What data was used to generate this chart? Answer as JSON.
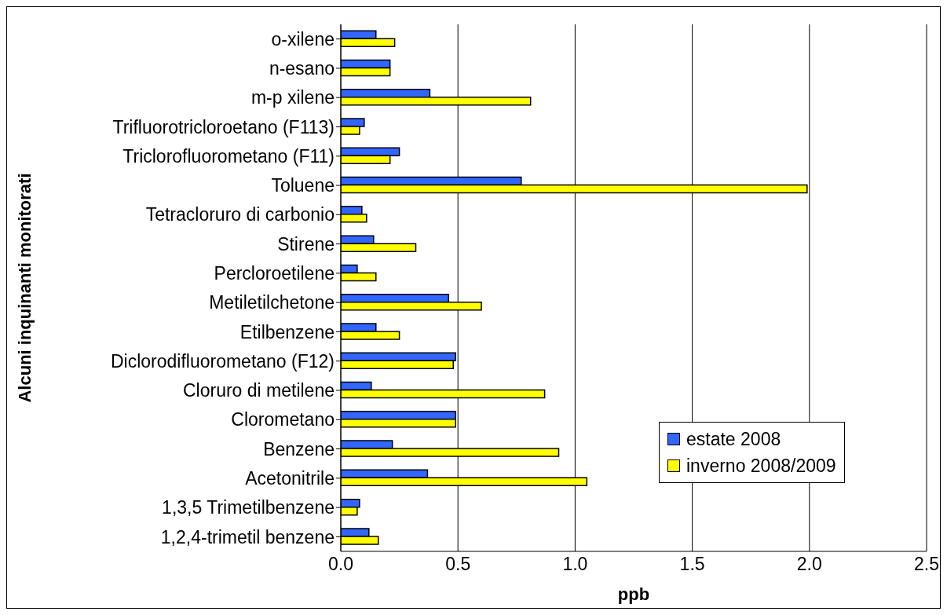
{
  "chart_data": {
    "type": "bar",
    "orientation": "horizontal",
    "xlabel": "ppb",
    "ylabel": "Alcuni inquinanti monitorati",
    "categories": [
      "o-xilene",
      "n-esano",
      "m-p xilene",
      "Trifluorotricloroetano (F113)",
      "Triclorofluorometano (F11)",
      "Toluene",
      "Tetracloruro di carbonio",
      "Stirene",
      "Percloroetilene",
      "Metiletilchetone",
      "Etilbenzene",
      "Diclorodifluorometano (F12)",
      "Cloruro di metilene",
      "Clorometano",
      "Benzene",
      "Acetonitrile",
      "1,3,5 Trimetilbenzene",
      "1,2,4-trimetil benzene"
    ],
    "series": [
      {
        "name": "estate 2008",
        "color": "#3366ff",
        "values": [
          0.15,
          0.21,
          0.38,
          0.1,
          0.25,
          0.77,
          0.09,
          0.14,
          0.07,
          0.46,
          0.15,
          0.49,
          0.13,
          0.49,
          0.22,
          0.37,
          0.08,
          0.12
        ]
      },
      {
        "name": "inverno 2008/2009",
        "color": "#ffff00",
        "values": [
          0.23,
          0.21,
          0.81,
          0.08,
          0.21,
          1.99,
          0.11,
          0.32,
          0.15,
          0.6,
          0.25,
          0.48,
          0.87,
          0.49,
          0.93,
          1.05,
          0.07,
          0.16
        ]
      }
    ],
    "xlim": [
      0,
      2.5
    ],
    "xticks": [
      {
        "value": 0,
        "label": "0.0"
      },
      {
        "value": 0.5,
        "label": "0.5"
      },
      {
        "value": 1,
        "label": "1.0"
      },
      {
        "value": 1.5,
        "label": "1.5"
      },
      {
        "value": 2,
        "label": "2.0"
      },
      {
        "value": 2.5,
        "label": "2.5"
      }
    ],
    "grid": "x",
    "legend": "bottom right"
  }
}
